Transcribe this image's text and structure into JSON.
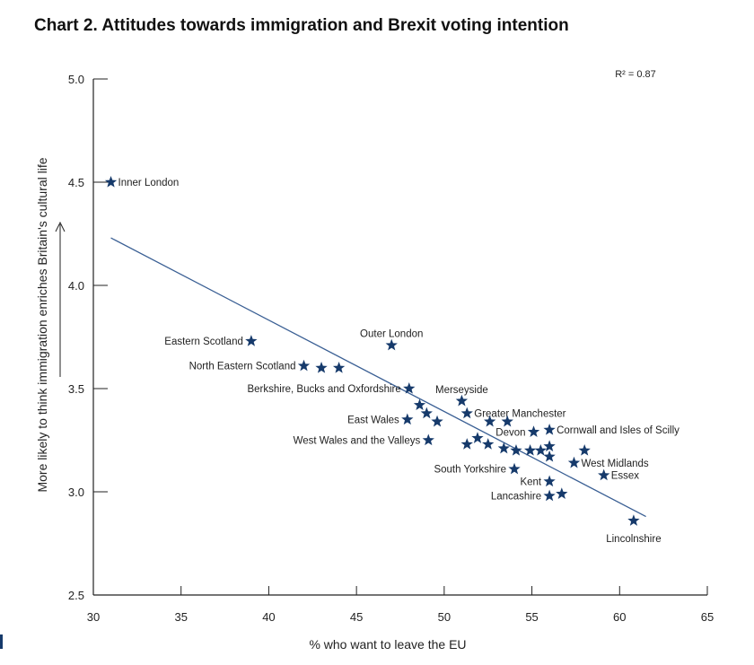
{
  "chart_data": {
    "type": "scatter",
    "title": "Chart 2. Attitudes towards immigration and Brexit voting intention",
    "xlabel": "% who want to leave the EU",
    "ylabel": "More likely to think immigration enriches Britain's cultural life",
    "xlim": [
      30,
      65
    ],
    "ylim": [
      2.5,
      5.0
    ],
    "xticks": [
      "30",
      "35",
      "40",
      "45",
      "50",
      "55",
      "60",
      "65"
    ],
    "yticks": [
      "2.5",
      "3.0",
      "3.5",
      "4.0",
      "4.5",
      "5.0"
    ],
    "annotation": "R² = 0.87",
    "trendline": {
      "x": [
        31,
        61.5
      ],
      "y": [
        4.23,
        2.88
      ]
    },
    "points": [
      {
        "x": 31.0,
        "y": 4.5,
        "label": "Inner London",
        "label_pos": "right"
      },
      {
        "x": 39.0,
        "y": 3.73,
        "label": "Eastern Scotland",
        "label_pos": "left"
      },
      {
        "x": 42.0,
        "y": 3.61,
        "label": "North Eastern Scotland",
        "label_pos": "left"
      },
      {
        "x": 43.0,
        "y": 3.6,
        "label": "",
        "label_pos": ""
      },
      {
        "x": 44.0,
        "y": 3.6,
        "label": "",
        "label_pos": ""
      },
      {
        "x": 47.0,
        "y": 3.71,
        "label": "Outer London",
        "label_pos": "above"
      },
      {
        "x": 48.0,
        "y": 3.5,
        "label": "Berkshire, Bucks and Oxfordshire",
        "label_pos": "left"
      },
      {
        "x": 47.9,
        "y": 3.35,
        "label": "East Wales",
        "label_pos": "left"
      },
      {
        "x": 48.6,
        "y": 3.42,
        "label": "",
        "label_pos": ""
      },
      {
        "x": 49.0,
        "y": 3.38,
        "label": "",
        "label_pos": ""
      },
      {
        "x": 49.6,
        "y": 3.34,
        "label": "",
        "label_pos": ""
      },
      {
        "x": 49.1,
        "y": 3.25,
        "label": "West Wales and the Valleys",
        "label_pos": "left"
      },
      {
        "x": 51.0,
        "y": 3.44,
        "label": "Merseyside",
        "label_pos": "above"
      },
      {
        "x": 51.3,
        "y": 3.38,
        "label": "Greater Manchester",
        "label_pos": "right"
      },
      {
        "x": 52.6,
        "y": 3.34,
        "label": "",
        "label_pos": ""
      },
      {
        "x": 53.6,
        "y": 3.34,
        "label": "",
        "label_pos": ""
      },
      {
        "x": 55.1,
        "y": 3.29,
        "label": "Devon",
        "label_pos": "left"
      },
      {
        "x": 56.0,
        "y": 3.3,
        "label": "Cornwall and Isles of Scilly",
        "label_pos": "right"
      },
      {
        "x": 51.3,
        "y": 3.23,
        "label": "",
        "label_pos": ""
      },
      {
        "x": 51.9,
        "y": 3.26,
        "label": "",
        "label_pos": ""
      },
      {
        "x": 52.5,
        "y": 3.23,
        "label": "",
        "label_pos": ""
      },
      {
        "x": 53.4,
        "y": 3.21,
        "label": "",
        "label_pos": ""
      },
      {
        "x": 54.1,
        "y": 3.2,
        "label": "",
        "label_pos": ""
      },
      {
        "x": 54.9,
        "y": 3.2,
        "label": "",
        "label_pos": ""
      },
      {
        "x": 55.5,
        "y": 3.2,
        "label": "",
        "label_pos": ""
      },
      {
        "x": 56.0,
        "y": 3.22,
        "label": "",
        "label_pos": ""
      },
      {
        "x": 56.0,
        "y": 3.17,
        "label": "",
        "label_pos": ""
      },
      {
        "x": 58.0,
        "y": 3.2,
        "label": "",
        "label_pos": ""
      },
      {
        "x": 57.4,
        "y": 3.14,
        "label": "West Midlands",
        "label_pos": "right"
      },
      {
        "x": 54.0,
        "y": 3.11,
        "label": "South Yorkshire",
        "label_pos": "left"
      },
      {
        "x": 59.1,
        "y": 3.08,
        "label": "Essex",
        "label_pos": "right"
      },
      {
        "x": 56.0,
        "y": 3.05,
        "label": "Kent",
        "label_pos": "left"
      },
      {
        "x": 56.0,
        "y": 2.98,
        "label": "Lancashire",
        "label_pos": "left"
      },
      {
        "x": 56.7,
        "y": 2.99,
        "label": "",
        "label_pos": ""
      },
      {
        "x": 60.8,
        "y": 2.86,
        "label": "Lincolnshire",
        "label_pos": "below"
      }
    ]
  }
}
